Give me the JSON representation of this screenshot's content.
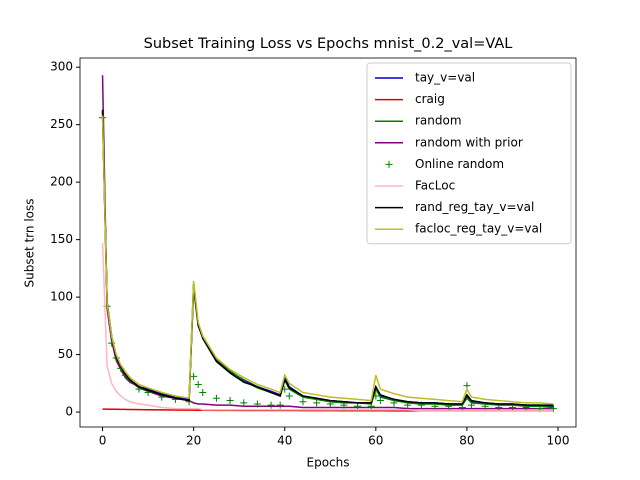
{
  "chart_data": {
    "type": "line",
    "title": "Subset Training Loss vs Epochs mnist_0.2_val=VAL",
    "x_label": "Epochs",
    "y_label": "Subset trn loss",
    "x": [
      0,
      1,
      2,
      3,
      4,
      5,
      6,
      8,
      10,
      13,
      16,
      19,
      20,
      21,
      22,
      25,
      28,
      31,
      34,
      37,
      39,
      40,
      41,
      44,
      47,
      50,
      53,
      56,
      59,
      60,
      61,
      64,
      67,
      70,
      73,
      76,
      79,
      80,
      81,
      84,
      87,
      90,
      93,
      96,
      99
    ],
    "xlim": [
      -4.95,
      103.95
    ],
    "xticks": [
      0,
      20,
      40,
      60,
      80,
      100
    ],
    "ylim": [
      -13,
      308
    ],
    "yticks": [
      0,
      50,
      100,
      150,
      200,
      250,
      300
    ],
    "legend": "upper right",
    "series": [
      {
        "name": "tay_v=val",
        "color": "#0000cc",
        "style": "line",
        "values": [
          262,
          95,
          65,
          48,
          40,
          33,
          28,
          22,
          20,
          16,
          13,
          11,
          108,
          75,
          65,
          45,
          35,
          28,
          22,
          18,
          15,
          30,
          22,
          14,
          12,
          10,
          9,
          8,
          8,
          22,
          14,
          11,
          9,
          8,
          8,
          7,
          7,
          14,
          9,
          8,
          7,
          7,
          6,
          6,
          5
        ]
      },
      {
        "name": "craig",
        "color": "#dd0000",
        "style": "line",
        "values": [
          2.5,
          2.5,
          2.4,
          2.4,
          2.3,
          2.3,
          2.2,
          2.1,
          2,
          1.9,
          1.8,
          1.7,
          1.7,
          1.6,
          1.6,
          1.5,
          1.5,
          1.4,
          1.4,
          1.3,
          1.3,
          1.3,
          1.3,
          1.2,
          1.2,
          1.2,
          1.1,
          1.1,
          1.1,
          1.1,
          1.1,
          1,
          1,
          1,
          1,
          1,
          1,
          1,
          1,
          1,
          1,
          1,
          1,
          1,
          1
        ]
      },
      {
        "name": "random",
        "color": "#008000",
        "style": "line",
        "values": [
          258,
          92,
          62,
          46,
          38,
          32,
          27,
          21,
          18,
          15,
          12,
          10,
          110,
          76,
          66,
          46,
          36,
          27,
          21,
          17,
          14,
          28,
          20,
          13,
          11,
          9,
          8,
          8,
          7,
          20,
          13,
          10,
          8,
          7,
          7,
          6,
          6,
          12,
          8,
          7,
          6,
          6,
          5,
          5,
          4
        ]
      },
      {
        "name": "random with prior",
        "color": "#800080",
        "style": "line",
        "values": [
          293,
          90,
          62,
          45,
          37,
          30,
          26,
          22,
          18,
          14,
          12,
          10,
          8,
          7,
          7,
          6,
          6,
          5,
          5,
          5,
          5,
          5,
          5,
          4,
          4,
          4,
          4,
          4,
          4,
          4,
          4,
          4,
          3,
          3,
          3,
          3,
          3,
          3,
          3,
          3,
          3,
          3,
          3,
          3,
          3
        ]
      },
      {
        "name": "Online random",
        "color": "#008000",
        "style": "marker",
        "values": [
          256,
          92,
          60,
          47,
          38,
          32,
          28,
          20,
          17,
          13,
          11,
          9,
          31,
          24,
          17,
          12,
          10,
          8,
          7,
          6,
          6,
          20,
          14,
          9,
          8,
          7,
          6,
          5,
          5,
          14,
          10,
          8,
          6,
          6,
          5,
          5,
          4,
          23,
          6,
          5,
          4,
          4,
          4,
          3,
          3
        ]
      },
      {
        "name": "FacLoc",
        "color": "#ffb6c1",
        "style": "line",
        "values": [
          147,
          40,
          25,
          18,
          14,
          11,
          9,
          7,
          6,
          4,
          3,
          3,
          3,
          3,
          2,
          2,
          2,
          2,
          2,
          2,
          2,
          2,
          2,
          2,
          2,
          2,
          2,
          2,
          2,
          2,
          2,
          2,
          2,
          1,
          1,
          1,
          1,
          1,
          1,
          1,
          1,
          1,
          1,
          1,
          1
        ]
      },
      {
        "name": "rand_reg_tay_v=val",
        "color": "#000000",
        "style": "line",
        "values": [
          263,
          96,
          66,
          48,
          40,
          33,
          28,
          22,
          19,
          15,
          12,
          10,
          112,
          76,
          64,
          44,
          34,
          26,
          22,
          17,
          14,
          28,
          21,
          14,
          12,
          10,
          9,
          8,
          8,
          22,
          15,
          11,
          9,
          8,
          8,
          7,
          7,
          15,
          10,
          8,
          7,
          7,
          6,
          6,
          6
        ]
      },
      {
        "name": "facloc_reg_tay_v=val",
        "color": "#bcbd22",
        "style": "line",
        "values": [
          258,
          95,
          66,
          50,
          41,
          35,
          30,
          24,
          21,
          17,
          14,
          12,
          114,
          78,
          66,
          47,
          37,
          30,
          24,
          20,
          17,
          32,
          25,
          17,
          15,
          13,
          12,
          11,
          10,
          32,
          20,
          16,
          13,
          12,
          11,
          10,
          9,
          20,
          13,
          11,
          10,
          9,
          8,
          8,
          7
        ]
      }
    ]
  }
}
